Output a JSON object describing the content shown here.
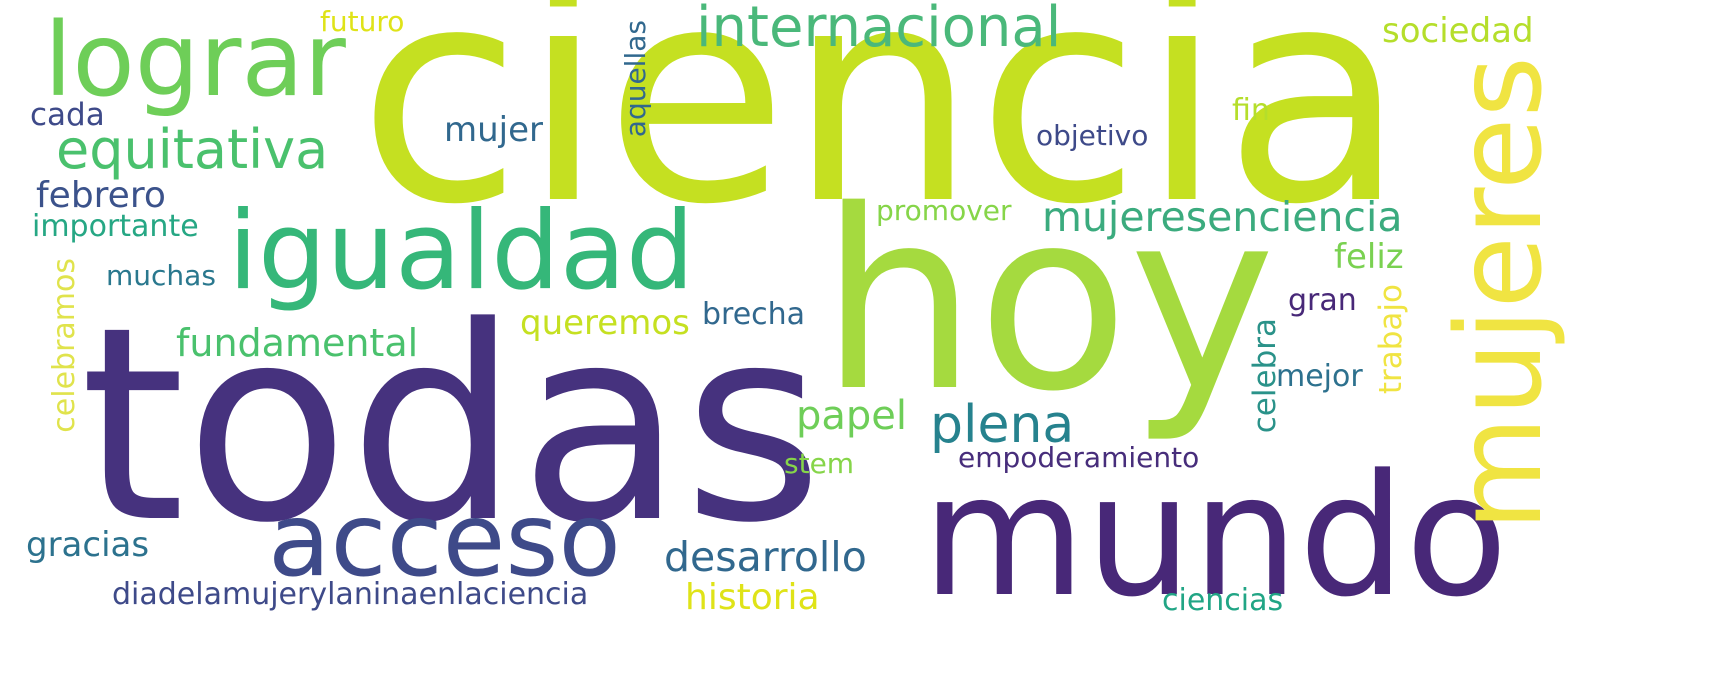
{
  "colors": {
    "dark_purple": "#472d7b",
    "indigo": "#3e4a89",
    "blue": "#31688e",
    "teal": "#26828e",
    "sea_green": "#21918c",
    "green": "#35b779",
    "light_green": "#6ece58",
    "lime": "#90d743",
    "yellow_green": "#c5e021",
    "yellow": "#f0e442"
  },
  "words": [
    {
      "text": "ciencia"
    },
    {
      "text": "hoy"
    },
    {
      "text": "todas"
    },
    {
      "text": "mundo"
    },
    {
      "text": "mujeres"
    },
    {
      "text": "igualdad"
    },
    {
      "text": "lograr"
    },
    {
      "text": "acceso"
    },
    {
      "text": "internacional"
    },
    {
      "text": "equitativa"
    },
    {
      "text": "mujeresenciencia"
    },
    {
      "text": "plena"
    },
    {
      "text": "desarrollo"
    },
    {
      "text": "historia"
    },
    {
      "text": "sociedad"
    },
    {
      "text": "fundamental"
    },
    {
      "text": "papel"
    },
    {
      "text": "queremos"
    },
    {
      "text": "gracias"
    },
    {
      "text": "febrero"
    },
    {
      "text": "celebramos"
    },
    {
      "text": "aquellas"
    },
    {
      "text": "mujer"
    },
    {
      "text": "cada"
    },
    {
      "text": "futuro"
    },
    {
      "text": "importante"
    },
    {
      "text": "muchas"
    },
    {
      "text": "feliz"
    },
    {
      "text": "trabajo"
    },
    {
      "text": "celebra"
    },
    {
      "text": "brecha"
    },
    {
      "text": "promover"
    },
    {
      "text": "empoderamiento"
    },
    {
      "text": "objetivo"
    },
    {
      "text": "fin"
    },
    {
      "text": "gran"
    },
    {
      "text": "mejor"
    },
    {
      "text": "stem"
    },
    {
      "text": "diadelamujerylaninaenlaciencia"
    },
    {
      "text": "ciencias"
    }
  ]
}
